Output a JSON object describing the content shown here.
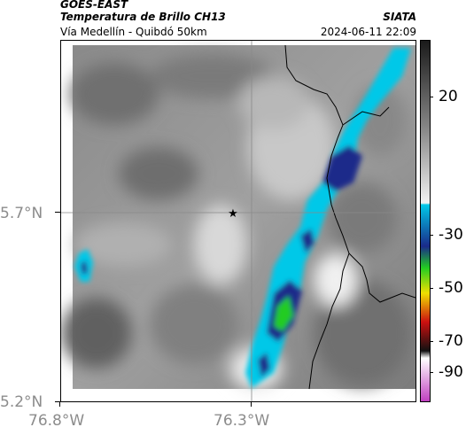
{
  "header": {
    "source_title": "GOES-EAST",
    "product_title": "Temperatura de Brillo CH13",
    "org": "SIATA",
    "route": "Vía Medellín - Quibdó 50km",
    "timestamp": "2024-06-11 22:09"
  },
  "map": {
    "y_ticks": [
      "5.7°N",
      "5.2°N"
    ],
    "x_ticks": [
      "76.8°W",
      "76.3°W"
    ],
    "marker_icon": "star-icon"
  },
  "colorbar": {
    "ticks": [
      "20",
      "-30",
      "-50",
      "-70",
      "-90"
    ],
    "colors": {
      "warm_top": "#1a1a1a",
      "warm_mid": "#8a8a8a",
      "cold_start": "#00c8e8",
      "deep_blue": "#1a2a8a",
      "green": "#22cc22",
      "yellow": "#f0e000",
      "red": "#cc1010",
      "black": "#111111",
      "magenta": "#c040c0"
    }
  }
}
